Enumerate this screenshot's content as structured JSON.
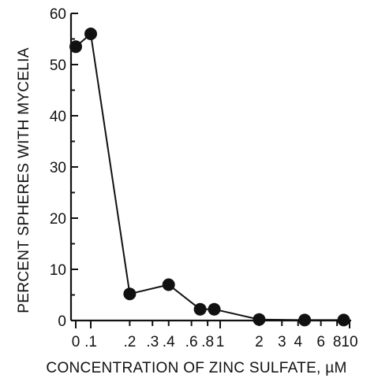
{
  "chart_data": {
    "type": "line",
    "title": "",
    "xlabel": "CONCENTRATION OF ZINC SULFATE, µM",
    "ylabel": "PERCENT SPHERES WITH MYCELIA",
    "x_scale": "log",
    "x_tick_labels": [
      "0",
      ".1",
      ".2",
      ".3",
      ".4",
      ".6",
      ".8",
      "1",
      "2",
      "3",
      "4",
      "6",
      "8",
      "10"
    ],
    "x_tick_values": [
      0,
      0.1,
      0.2,
      0.3,
      0.4,
      0.6,
      0.8,
      1,
      2,
      3,
      4,
      6,
      8,
      10
    ],
    "y_ticks": [
      0,
      10,
      20,
      30,
      40,
      50,
      60
    ],
    "ylim": [
      0,
      60
    ],
    "grid": false,
    "series": [
      {
        "x": [
          0,
          0.1,
          0.2,
          0.4,
          0.7,
          0.9,
          2,
          4.5,
          9
        ],
        "y": [
          53.5,
          56,
          5.2,
          7,
          2.2,
          2.2,
          0.2,
          0.1,
          0.1
        ]
      }
    ]
  }
}
